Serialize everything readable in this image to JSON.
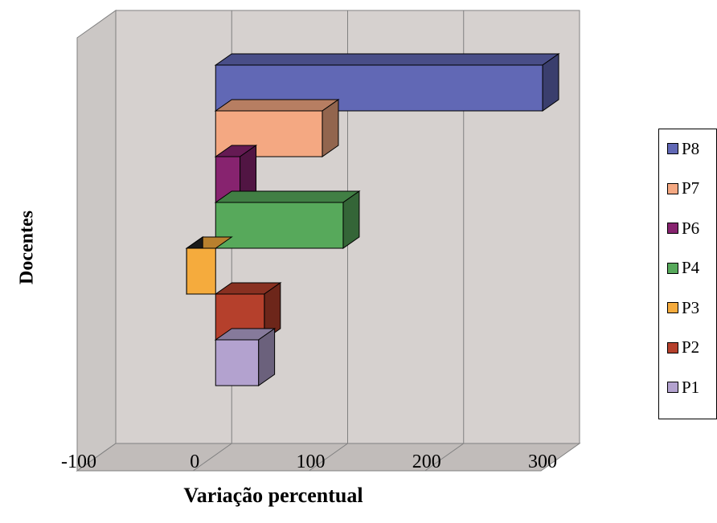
{
  "chart_data": {
    "type": "bar",
    "orientation": "horizontal",
    "three_d": true,
    "categories": [
      "P1",
      "P2",
      "P3",
      "P4",
      "P6",
      "P7",
      "P8"
    ],
    "values": [
      37,
      42,
      -25,
      110,
      21,
      92,
      282
    ],
    "colors": {
      "P1": "#b3a2cf",
      "P2": "#b5402c",
      "P3": "#f5ab3d",
      "P4": "#57a95b",
      "P6": "#87236f",
      "P7": "#f4a882",
      "P8": "#6168b5"
    },
    "xlabel": "Variação percentual",
    "ylabel": "Docentes",
    "xlim": [
      -100,
      300
    ],
    "xticks": [
      "-100",
      "0",
      "100",
      "200",
      "300"
    ],
    "grid": true,
    "legend": {
      "placement": "right",
      "entries": [
        "P8",
        "P7",
        "P6",
        "P4",
        "P3",
        "P2",
        "P1"
      ]
    },
    "wall_color": "#d6d1cf"
  }
}
